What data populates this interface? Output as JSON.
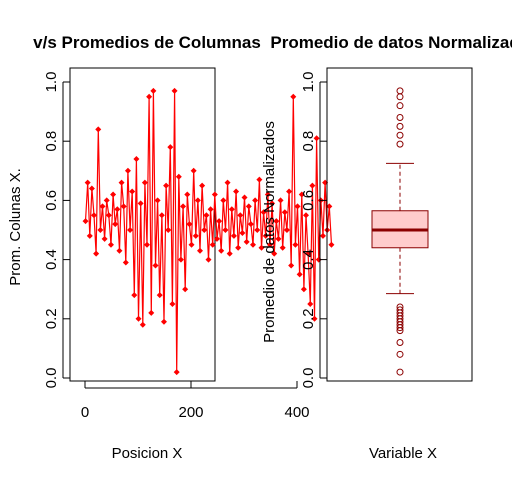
{
  "chart_data": [
    {
      "type": "line",
      "title": "v/s Promedios de Columnas",
      "xlabel": "Posicion X",
      "ylabel": "Prom. Colunas X.",
      "xlim": [
        -10,
        480
      ],
      "ylim": [
        0,
        1
      ],
      "xticks": [
        "0",
        "200",
        "400"
      ],
      "yticks": [
        "0.0",
        "0.2",
        "0.4",
        "0.6",
        "0.8",
        "1.0"
      ],
      "grid": false,
      "colors": {
        "series": "#ff0000"
      },
      "series": [
        {
          "x": [
            1,
            5,
            9,
            13,
            17,
            21,
            25,
            29,
            33,
            37,
            41,
            45,
            49,
            53,
            57,
            61,
            65,
            69,
            73,
            77,
            81,
            85,
            89,
            93,
            97,
            101,
            105,
            109,
            113,
            117,
            121,
            125,
            129,
            133,
            137,
            141,
            145,
            149,
            153,
            157,
            161,
            165,
            169,
            173,
            177,
            181,
            185,
            189,
            193,
            197,
            201,
            205,
            209,
            213,
            217,
            221,
            225,
            229,
            233,
            237,
            241,
            245,
            249,
            253,
            257,
            261,
            265,
            269,
            273,
            277,
            281,
            285,
            289,
            293,
            297,
            301,
            305,
            309,
            313,
            317,
            321,
            325,
            329,
            333,
            337,
            341,
            345,
            349,
            353,
            357,
            361,
            365,
            369,
            373,
            377,
            381,
            385,
            389,
            393,
            397,
            401,
            405,
            409,
            413,
            417,
            421,
            425,
            429,
            433,
            437,
            441,
            445,
            449,
            453,
            457,
            461,
            465
          ],
          "y": [
            0.53,
            0.66,
            0.48,
            0.64,
            0.55,
            0.42,
            0.84,
            0.5,
            0.58,
            0.47,
            0.6,
            0.55,
            0.45,
            0.62,
            0.52,
            0.57,
            0.43,
            0.66,
            0.58,
            0.39,
            0.7,
            0.5,
            0.63,
            0.28,
            0.74,
            0.2,
            0.59,
            0.18,
            0.66,
            0.45,
            0.95,
            0.22,
            0.97,
            0.38,
            0.6,
            0.28,
            0.55,
            0.19,
            0.65,
            0.5,
            0.78,
            0.25,
            0.97,
            0.02,
            0.68,
            0.4,
            0.58,
            0.3,
            0.62,
            0.52,
            0.45,
            0.7,
            0.48,
            0.6,
            0.43,
            0.65,
            0.5,
            0.55,
            0.4,
            0.57,
            0.45,
            0.62,
            0.47,
            0.53,
            0.43,
            0.6,
            0.5,
            0.66,
            0.42,
            0.57,
            0.48,
            0.63,
            0.44,
            0.55,
            0.49,
            0.61,
            0.46,
            0.58,
            0.52,
            0.45,
            0.6,
            0.5,
            0.67,
            0.44,
            0.56,
            0.48,
            0.62,
            0.45,
            0.59,
            0.42,
            0.53,
            0.47,
            0.6,
            0.44,
            0.56,
            0.5,
            0.63,
            0.38,
            0.95,
            0.45,
            0.58,
            0.35,
            0.62,
            0.3,
            0.55,
            0.42,
            0.25,
            0.65,
            0.2,
            0.81,
            0.4,
            0.6,
            0.48,
            0.66,
            0.5,
            0.58,
            0.45
          ]
        }
      ]
    },
    {
      "type": "box",
      "title": "Promedio de datos Normalizados",
      "xlabel": "Variable X",
      "ylabel": "Promedio de datos Normalizados",
      "ylim": [
        0,
        1
      ],
      "yticks": [
        "0.0",
        "0.2",
        "0.4",
        "0.6",
        "0.8",
        "1.0"
      ],
      "colors": {
        "fill": "#ffcccc",
        "median": "#8b0000",
        "border": "#8b0000"
      },
      "box": {
        "lower_whisker": 0.285,
        "q1": 0.44,
        "median": 0.5,
        "q3": 0.565,
        "upper_whisker": 0.725
      },
      "outliers": [
        0.97,
        0.95,
        0.92,
        0.88,
        0.85,
        0.82,
        0.79,
        0.24,
        0.23,
        0.22,
        0.21,
        0.2,
        0.19,
        0.18,
        0.17,
        0.16,
        0.12,
        0.08,
        0.02
      ]
    }
  ]
}
